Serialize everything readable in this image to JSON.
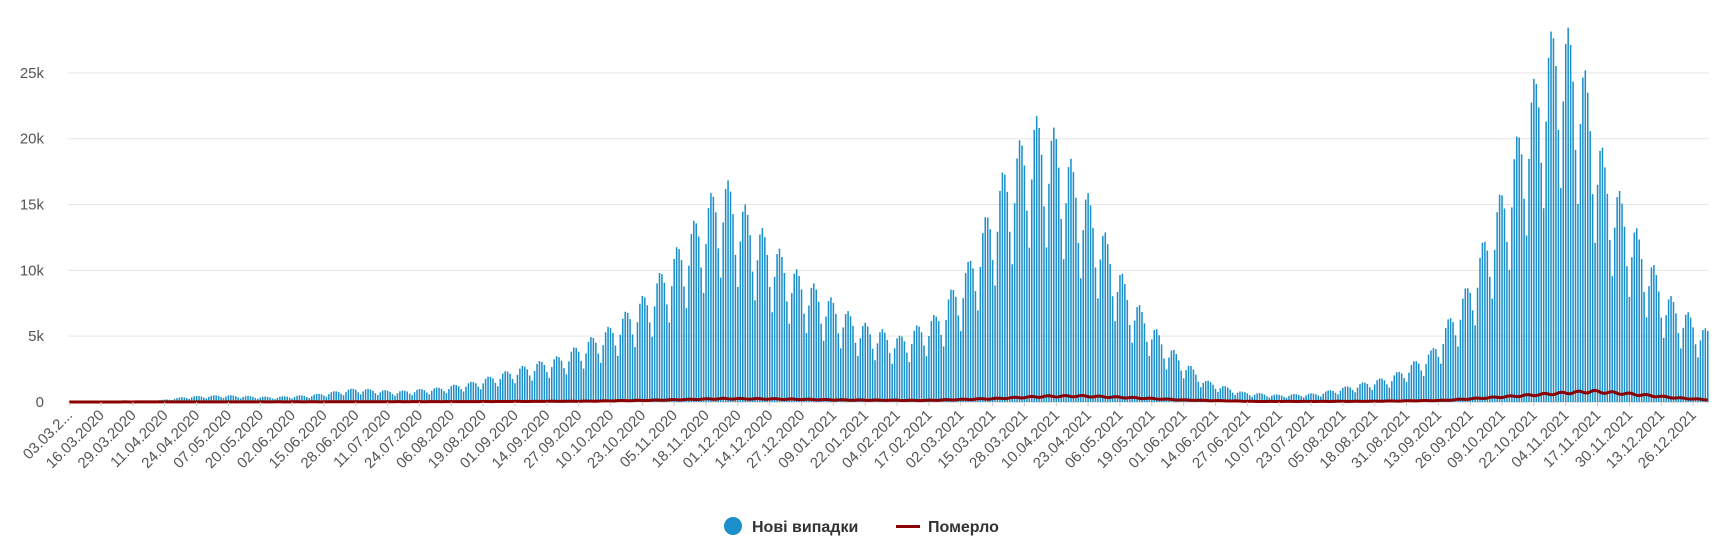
{
  "chart_data": {
    "type": "bar",
    "ylim": [
      0,
      27500
    ],
    "yticks": [
      {
        "value": 0,
        "label": "0"
      },
      {
        "value": 5000,
        "label": "5k"
      },
      {
        "value": 10000,
        "label": "10k"
      },
      {
        "value": 15000,
        "label": "15k"
      },
      {
        "value": 20000,
        "label": "20k"
      },
      {
        "value": 25000,
        "label": "25k"
      }
    ],
    "x_start_date": "2020-03-03",
    "x_end_date": "2022-01-01",
    "x_tick_labels": [
      "03.03.2...",
      "16.03.2020",
      "29.03.2020",
      "11.04.2020",
      "24.04.2020",
      "07.05.2020",
      "20.05.2020",
      "02.06.2020",
      "15.06.2020",
      "28.06.2020",
      "11.07.2020",
      "24.07.2020",
      "06.08.2020",
      "19.08.2020",
      "01.09.2020",
      "14.09.2020",
      "27.09.2020",
      "10.10.2020",
      "23.10.2020",
      "05.11.2020",
      "18.11.2020",
      "01.12.2020",
      "14.12.2020",
      "27.12.2020",
      "09.01.2021",
      "22.01.2021",
      "04.02.2021",
      "17.02.2021",
      "02.03.2021",
      "15.03.2021",
      "28.03.2021",
      "10.04.2021",
      "23.04.2021",
      "06.05.2021",
      "19.05.2021",
      "01.06.2021",
      "14.06.2021",
      "27.06.2021",
      "10.07.2021",
      "23.07.2021",
      "05.08.2021",
      "18.08.2021",
      "31.08.2021",
      "13.09.2021",
      "26.09.2021",
      "09.10.2021",
      "22.10.2021",
      "04.11.2021",
      "17.11.2021",
      "30.11.2021",
      "13.12.2021",
      "26.12.2021"
    ],
    "series": [
      {
        "name": "Нові випадки",
        "kind": "bar",
        "color": "#1a8fc9",
        "anchors": [
          [
            "2020-03-03",
            0
          ],
          [
            "2020-03-31",
            5
          ],
          [
            "2020-04-10",
            150
          ],
          [
            "2020-04-20",
            380
          ],
          [
            "2020-05-05",
            480
          ],
          [
            "2020-05-25",
            350
          ],
          [
            "2020-06-10",
            500
          ],
          [
            "2020-06-28",
            950
          ],
          [
            "2020-07-15",
            750
          ],
          [
            "2020-08-01",
            1000
          ],
          [
            "2020-08-15",
            1400
          ],
          [
            "2020-09-01",
            2300
          ],
          [
            "2020-09-20",
            3200
          ],
          [
            "2020-10-10",
            5200
          ],
          [
            "2020-10-25",
            7500
          ],
          [
            "2020-11-10",
            11500
          ],
          [
            "2020-11-25",
            15500
          ],
          [
            "2020-12-10",
            12000
          ],
          [
            "2020-12-25",
            9000
          ],
          [
            "2021-01-05",
            7500
          ],
          [
            "2021-01-20",
            5500
          ],
          [
            "2021-02-05",
            4500
          ],
          [
            "2021-02-20",
            6000
          ],
          [
            "2021-03-05",
            9500
          ],
          [
            "2021-03-20",
            16000
          ],
          [
            "2021-04-01",
            19500
          ],
          [
            "2021-04-10",
            18500
          ],
          [
            "2021-04-25",
            13500
          ],
          [
            "2021-05-10",
            7500
          ],
          [
            "2021-05-25",
            4000
          ],
          [
            "2021-06-10",
            1500
          ],
          [
            "2021-06-25",
            700
          ],
          [
            "2021-07-10",
            500
          ],
          [
            "2021-07-25",
            600
          ],
          [
            "2021-08-10",
            1200
          ],
          [
            "2021-08-25",
            1800
          ],
          [
            "2021-09-10",
            3500
          ],
          [
            "2021-09-25",
            8000
          ],
          [
            "2021-10-10",
            15000
          ],
          [
            "2021-10-20",
            21000
          ],
          [
            "2021-11-01",
            26500
          ],
          [
            "2021-11-10",
            24000
          ],
          [
            "2021-11-20",
            16500
          ],
          [
            "2021-12-01",
            12500
          ],
          [
            "2021-12-15",
            7500
          ],
          [
            "2021-12-31",
            5000
          ]
        ]
      },
      {
        "name": "Померло",
        "kind": "line",
        "color": "#8b0000",
        "anchors": [
          [
            "2020-03-03",
            0
          ],
          [
            "2020-04-20",
            10
          ],
          [
            "2020-06-15",
            15
          ],
          [
            "2020-08-15",
            30
          ],
          [
            "2020-10-01",
            60
          ],
          [
            "2020-11-01",
            150
          ],
          [
            "2020-11-25",
            250
          ],
          [
            "2020-12-15",
            230
          ],
          [
            "2021-01-15",
            150
          ],
          [
            "2021-02-15",
            120
          ],
          [
            "2021-03-15",
            250
          ],
          [
            "2021-04-05",
            420
          ],
          [
            "2021-04-20",
            450
          ],
          [
            "2021-05-10",
            330
          ],
          [
            "2021-06-01",
            150
          ],
          [
            "2021-07-01",
            40
          ],
          [
            "2021-08-15",
            50
          ],
          [
            "2021-09-15",
            120
          ],
          [
            "2021-10-15",
            450
          ],
          [
            "2021-11-05",
            700
          ],
          [
            "2021-11-15",
            800
          ],
          [
            "2021-12-01",
            600
          ],
          [
            "2021-12-20",
            300
          ],
          [
            "2021-12-31",
            180
          ]
        ]
      }
    ],
    "legend_position": "bottom-center",
    "grid": true
  },
  "legend": {
    "items": [
      {
        "label": "Нові випадки",
        "color": "#1a8fc9"
      },
      {
        "label": "Померло",
        "color": "#8b0000"
      }
    ]
  }
}
